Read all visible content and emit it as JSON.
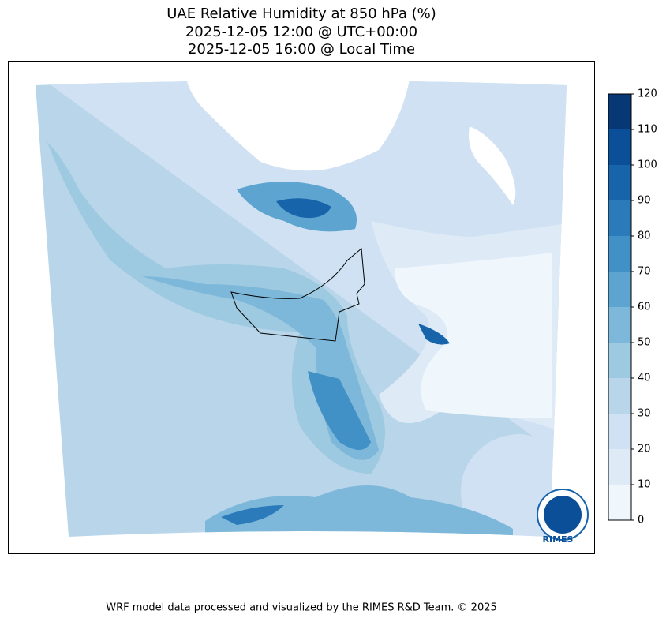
{
  "map": {
    "title_lines": [
      "UAE Relative Humidity at 850 hPa (%)",
      "2025-12-05 12:00 @ UTC+00:00",
      "2025-12-05 16:00 @ Local Time"
    ],
    "colorbar": {
      "lim": [
        0,
        120
      ],
      "ticks": [
        0,
        10,
        20,
        30,
        40,
        50,
        60,
        70,
        80,
        90,
        100,
        110,
        120
      ],
      "colors": [
        "#eff6fc",
        "#deebf7",
        "#cfe1f2",
        "#b8d5ea",
        "#9dc9e1",
        "#7db8da",
        "#5da4d0",
        "#4190c6",
        "#2b7bba",
        "#1764ab",
        "#0a4f97",
        "#083776"
      ]
    },
    "logo_text": "RIMES",
    "footer": "WRF model data processed and visualized by the RIMES R&D Team. © 2025"
  }
}
